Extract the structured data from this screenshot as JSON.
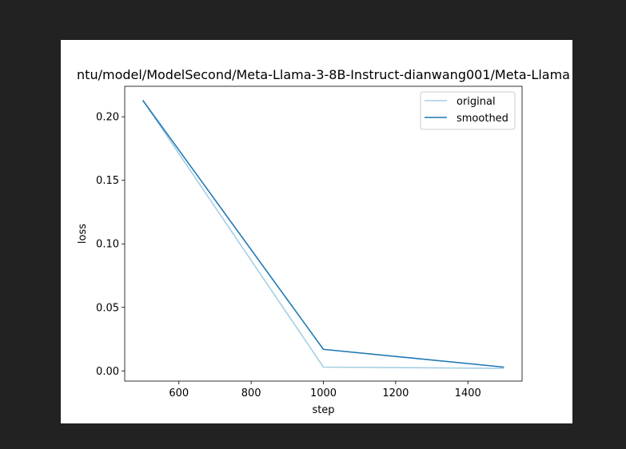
{
  "colors": {
    "window_background": "#222222",
    "figure_background": "#ffffff",
    "original_line": "#a6cee3",
    "smoothed_line": "#1f78b4"
  },
  "chart_data": {
    "type": "line",
    "title": "ntu/model/ModelSecond/Meta-Llama-3-8B-Instruct-dianwang001/Meta-Llama",
    "xlabel": "step",
    "ylabel": "loss",
    "xlim": [
      450,
      1550
    ],
    "ylim": [
      -0.008,
      0.224
    ],
    "xticks": [
      600,
      800,
      1000,
      1200,
      1400
    ],
    "xtick_labels": [
      "600",
      "800",
      "1000",
      "1200",
      "1400"
    ],
    "yticks": [
      0.0,
      0.05,
      0.1,
      0.15,
      0.2
    ],
    "ytick_labels": [
      "0.00",
      "0.05",
      "0.10",
      "0.15",
      "0.20"
    ],
    "grid": false,
    "legend_position": "top-right",
    "series": [
      {
        "name": "original",
        "x": [
          500,
          1000,
          1500
        ],
        "y": [
          0.213,
          0.003,
          0.002
        ]
      },
      {
        "name": "smoothed",
        "x": [
          500,
          1000,
          1500
        ],
        "y": [
          0.213,
          0.017,
          0.003
        ]
      }
    ]
  }
}
